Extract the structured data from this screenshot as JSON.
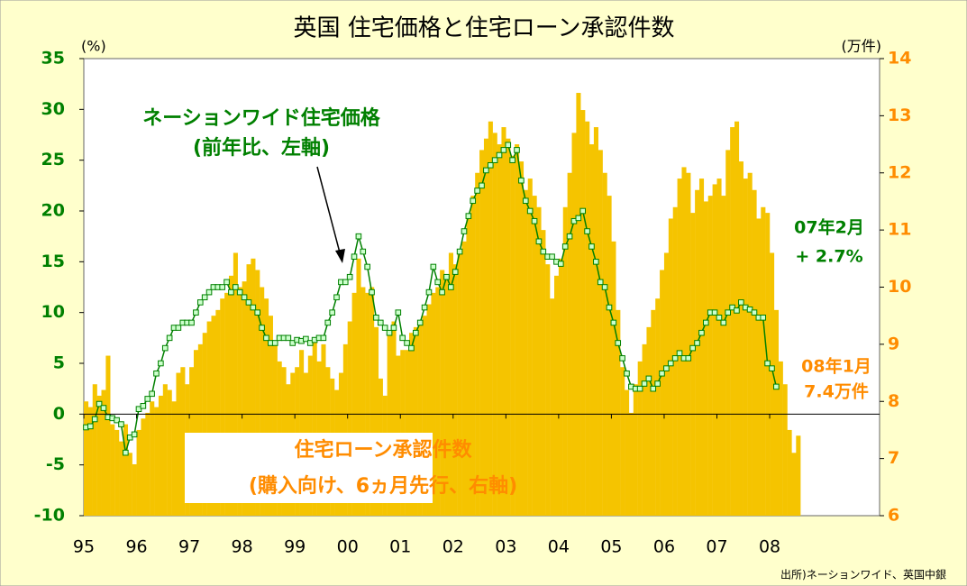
{
  "chart_data": {
    "type": "combo",
    "title": "英国 住宅価格と住宅ローン承認件数",
    "y_label": "(%)",
    "y2_label": "(万件)",
    "source": "出所)ネーションワイド、英国中銀",
    "ylim": [
      -10,
      35
    ],
    "yticks": [
      -10,
      -5,
      0,
      5,
      10,
      15,
      20,
      25,
      30,
      35
    ],
    "y2lim": [
      6,
      14
    ],
    "y2ticks": [
      6,
      7,
      8,
      9,
      10,
      11,
      12,
      13,
      14
    ],
    "y_color": "#008000",
    "y2_color": "#ff8c00",
    "categories": [
      "95",
      null,
      null,
      null,
      null,
      null,
      null,
      null,
      null,
      null,
      null,
      null,
      "96",
      null,
      null,
      null,
      null,
      null,
      null,
      null,
      null,
      null,
      null,
      null,
      "97",
      null,
      null,
      null,
      null,
      null,
      null,
      null,
      null,
      null,
      null,
      null,
      "98",
      null,
      null,
      null,
      null,
      null,
      null,
      null,
      null,
      null,
      null,
      null,
      "99",
      null,
      null,
      null,
      null,
      null,
      null,
      null,
      null,
      null,
      null,
      null,
      "00",
      null,
      null,
      null,
      null,
      null,
      null,
      null,
      null,
      null,
      null,
      null,
      "01",
      null,
      null,
      null,
      null,
      null,
      null,
      null,
      null,
      null,
      null,
      null,
      "02",
      null,
      null,
      null,
      null,
      null,
      null,
      null,
      null,
      null,
      null,
      null,
      "03",
      null,
      null,
      null,
      null,
      null,
      null,
      null,
      null,
      null,
      null,
      null,
      "04",
      null,
      null,
      null,
      null,
      null,
      null,
      null,
      null,
      null,
      null,
      null,
      "05",
      null,
      null,
      null,
      null,
      null,
      null,
      null,
      null,
      null,
      null,
      null,
      "06",
      null,
      null,
      null,
      null,
      null,
      null,
      null,
      null,
      null,
      null,
      null,
      "07",
      null,
      null,
      null,
      null,
      null,
      null,
      null,
      null,
      null,
      null,
      null,
      "08",
      null,
      null,
      null,
      null,
      null,
      null
    ],
    "series": [
      {
        "name": "住宅ローン承認件数",
        "type": "bar",
        "axis": "y2",
        "color": "#f5c400",
        "values": [
          8.0,
          7.9,
          8.3,
          8.1,
          8.2,
          8.8,
          7.6,
          7.5,
          7.3,
          7.6,
          7.1,
          6.9,
          7.5,
          7.7,
          7.8,
          8.0,
          7.9,
          8.1,
          8.3,
          8.2,
          8.0,
          8.5,
          8.6,
          8.3,
          8.6,
          8.9,
          9.0,
          9.2,
          9.4,
          9.5,
          9.6,
          9.8,
          9.9,
          10.2,
          10.6,
          10.0,
          10.1,
          10.4,
          10.5,
          10.3,
          10.0,
          9.8,
          9.5,
          9.0,
          8.7,
          8.6,
          8.3,
          8.5,
          8.6,
          8.9,
          8.5,
          8.8,
          9.1,
          8.7,
          9.0,
          8.6,
          8.4,
          8.2,
          8.5,
          9.0,
          9.4,
          9.9,
          10.5,
          10.0,
          9.9,
          10.0,
          9.3,
          8.4,
          8.1,
          9.2,
          9.4,
          8.8,
          8.9,
          8.9,
          9.2,
          9.3,
          9.4,
          9.5,
          9.7,
          9.9,
          10.0,
          10.3,
          10.2,
          10.6,
          10.4,
          10.6,
          10.8,
          11.2,
          11.6,
          12.0,
          12.4,
          12.6,
          12.9,
          12.7,
          12.5,
          12.8,
          12.6,
          12.3,
          12.5,
          12.2,
          11.7,
          11.9,
          11.6,
          11.4,
          11.0,
          10.4,
          9.8,
          10.2,
          10.5,
          11.4,
          12.0,
          12.7,
          13.4,
          13.1,
          12.9,
          12.5,
          12.8,
          12.4,
          12.0,
          11.6,
          10.8,
          9.6,
          8.6,
          8.2,
          7.8,
          8.3,
          8.7,
          9.0,
          9.3,
          9.6,
          9.8,
          10.3,
          10.6,
          11.2,
          11.4,
          11.9,
          12.1,
          12.0,
          11.3,
          11.7,
          11.9,
          11.5,
          11.6,
          11.8,
          11.9,
          11.6,
          12.4,
          12.8,
          12.9,
          12.2,
          11.9,
          12.0,
          11.7,
          11.2,
          11.4,
          11.3,
          10.6,
          9.6,
          8.7,
          8.3,
          7.5,
          7.1,
          7.4
        ]
      },
      {
        "name": "ネーションワイド住宅価格",
        "type": "line",
        "axis": "y",
        "color": "#008000",
        "marker_color": "#ccffcc",
        "values": [
          -1.3,
          -1.2,
          -0.5,
          1.0,
          0.6,
          -0.3,
          -0.4,
          -0.6,
          -1.0,
          -3.8,
          -2.3,
          -2.0,
          0.5,
          0.8,
          1.5,
          2.0,
          4.0,
          5.0,
          6.5,
          7.5,
          8.5,
          8.5,
          9.0,
          9.0,
          9.0,
          10.0,
          11.0,
          11.5,
          12.0,
          12.5,
          12.5,
          12.5,
          13.0,
          12.0,
          12.5,
          12.0,
          11.5,
          11.0,
          10.5,
          10.0,
          8.5,
          7.5,
          7.0,
          7.0,
          7.5,
          7.5,
          7.5,
          7.0,
          7.3,
          7.2,
          7.4,
          7.0,
          7.3,
          7.5,
          7.5,
          9.0,
          10.0,
          11.5,
          13.0,
          13.0,
          13.5,
          15.5,
          17.5,
          16.0,
          14.5,
          12.0,
          9.5,
          9.0,
          8.5,
          8.0,
          8.5,
          10.0,
          7.5,
          7.0,
          6.5,
          8.0,
          9.0,
          10.5,
          12.0,
          14.5,
          13.0,
          12.0,
          13.5,
          12.5,
          14.0,
          16.0,
          18.0,
          19.5,
          21.0,
          22.0,
          22.5,
          24.0,
          24.5,
          25.0,
          25.5,
          26.0,
          26.5,
          25.0,
          26.0,
          23.0,
          21.0,
          20.0,
          19.0,
          17.0,
          16.0,
          15.5,
          15.5,
          15.0,
          14.8,
          16.5,
          17.5,
          19.0,
          19.3,
          20.0,
          18.0,
          16.5,
          15.0,
          13.0,
          12.5,
          10.5,
          9.0,
          7.0,
          5.5,
          4.0,
          2.7,
          2.5,
          2.5,
          3.0,
          3.5,
          2.5,
          3.0,
          4.0,
          4.5,
          5.0,
          5.5,
          6.0,
          5.5,
          5.5,
          6.5,
          7.0,
          8.0,
          9.0,
          10.0,
          10.0,
          9.5,
          9.0,
          10.0,
          10.5,
          10.2,
          11.0,
          10.5,
          10.3,
          10.0,
          9.5,
          9.5,
          5.0,
          4.5,
          2.7,
          null,
          null,
          null,
          null,
          null
        ]
      }
    ],
    "annotations": [
      "(前年比、左軸)",
      "07年2月",
      "+ 2.7%",
      "08年1月",
      "7.4万件",
      "(購入向け、6ヵ月先行、右軸)"
    ]
  }
}
